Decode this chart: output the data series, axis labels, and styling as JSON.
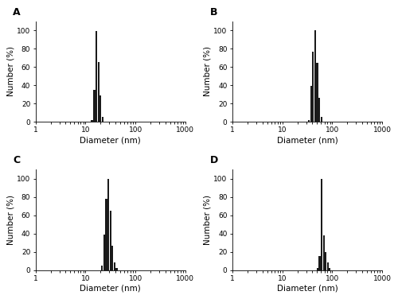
{
  "panels": [
    {
      "label": "A",
      "bars": [
        {
          "x": 13.5,
          "height": 2
        },
        {
          "x": 15.0,
          "height": 35
        },
        {
          "x": 16.5,
          "height": 99
        },
        {
          "x": 18.2,
          "height": 65
        },
        {
          "x": 20.0,
          "height": 29
        },
        {
          "x": 22.0,
          "height": 5
        }
      ]
    },
    {
      "label": "B",
      "bars": [
        {
          "x": 34.0,
          "height": 2
        },
        {
          "x": 37.5,
          "height": 39
        },
        {
          "x": 41.5,
          "height": 77
        },
        {
          "x": 45.5,
          "height": 100
        },
        {
          "x": 50.0,
          "height": 64
        },
        {
          "x": 55.0,
          "height": 26
        },
        {
          "x": 60.5,
          "height": 5
        }
      ]
    },
    {
      "label": "C",
      "bars": [
        {
          "x": 21.0,
          "height": 5
        },
        {
          "x": 23.5,
          "height": 39
        },
        {
          "x": 26.0,
          "height": 78
        },
        {
          "x": 28.5,
          "height": 100
        },
        {
          "x": 31.5,
          "height": 65
        },
        {
          "x": 34.5,
          "height": 27
        },
        {
          "x": 38.0,
          "height": 8
        },
        {
          "x": 42.0,
          "height": 2
        }
      ]
    },
    {
      "label": "D",
      "bars": [
        {
          "x": 51.0,
          "height": 2
        },
        {
          "x": 56.0,
          "height": 15
        },
        {
          "x": 62.0,
          "height": 100
        },
        {
          "x": 68.0,
          "height": 38
        },
        {
          "x": 74.0,
          "height": 20
        },
        {
          "x": 81.0,
          "height": 8
        },
        {
          "x": 89.0,
          "height": 2
        }
      ]
    }
  ],
  "bar_color": "#1a1a1a",
  "ylim": [
    0,
    110
  ],
  "yticks": [
    0,
    20,
    40,
    60,
    80,
    100
  ],
  "xlim_log": [
    1,
    1000
  ],
  "xticks": [
    1,
    10,
    100,
    1000
  ],
  "xlabel": "Diameter (nm)",
  "ylabel": "Number (%)",
  "label_fontsize": 7.5,
  "tick_fontsize": 6.5,
  "panel_label_fontsize": 9
}
